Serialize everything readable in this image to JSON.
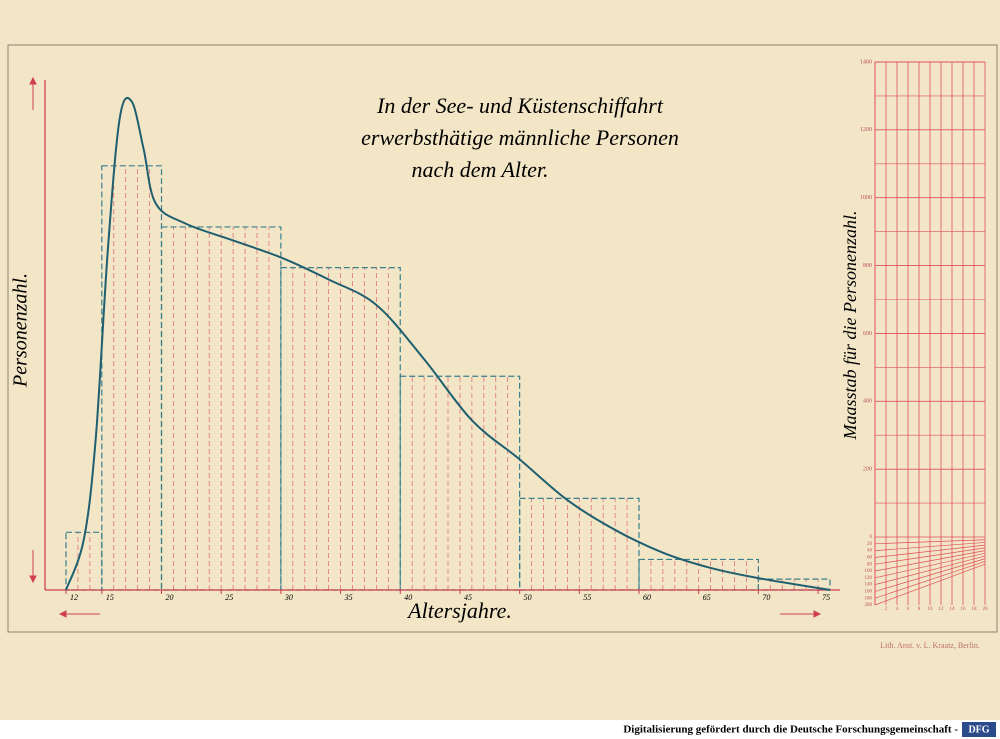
{
  "chart_data": [
    {
      "type": "histogram",
      "title": [
        "In der See- und Küstenschiffahrt",
        "erwerbsthätige männliche Personen",
        "nach dem Alter."
      ],
      "xlabel": "Altersjahre.",
      "ylabel": "Personenzahl.",
      "bins": [
        12,
        15,
        20,
        30,
        40,
        50,
        60,
        70,
        76
      ],
      "values": [
        170,
        1250,
        1070,
        950,
        630,
        270,
        90,
        32
      ],
      "color": "#3a7f8c",
      "hatch_color": "#e0707a",
      "curve": {
        "x": [
          12,
          13.5,
          14.5,
          15.5,
          16.5,
          17.5,
          18.5,
          19.5,
          22,
          26,
          30,
          34,
          38,
          42,
          46,
          50,
          54,
          58,
          62,
          66,
          70,
          76
        ],
        "values": [
          0,
          150,
          450,
          1000,
          1390,
          1440,
          1300,
          1140,
          1080,
          1030,
          980,
          915,
          840,
          680,
          500,
          385,
          265,
          177,
          110,
          65,
          35,
          0
        ],
        "color": "#1f5f70"
      },
      "xlim": [
        12,
        76
      ],
      "ylim": [
        0,
        1500
      ],
      "xticks": [
        12,
        15,
        20,
        25,
        30,
        35,
        40,
        45,
        50,
        55,
        60,
        65,
        70,
        75
      ]
    },
    {
      "type": "scale",
      "ylabel": "Maasstab für die Personenzahl.",
      "ylim": [
        0,
        1400
      ],
      "yticks": [
        200,
        400,
        600,
        800,
        1000,
        1200,
        1400
      ],
      "sub_yticks": [
        0,
        20,
        40,
        60,
        80,
        100,
        120,
        140,
        160,
        180,
        200
      ],
      "sub_xticks": [
        2,
        4,
        6,
        8,
        10,
        12,
        14,
        16,
        18,
        20
      ],
      "sub_xlim": [
        0,
        20
      ],
      "sub_ylim": [
        0,
        200
      ],
      "color": "#e0505a"
    }
  ],
  "page": {
    "credit": "Lith. Anst. v. L. Kraatz, Berlin.",
    "footer": "Digitalisierung gefördert durch die Deutsche Forschungsgemeinschaft -",
    "logo": "DFG"
  }
}
